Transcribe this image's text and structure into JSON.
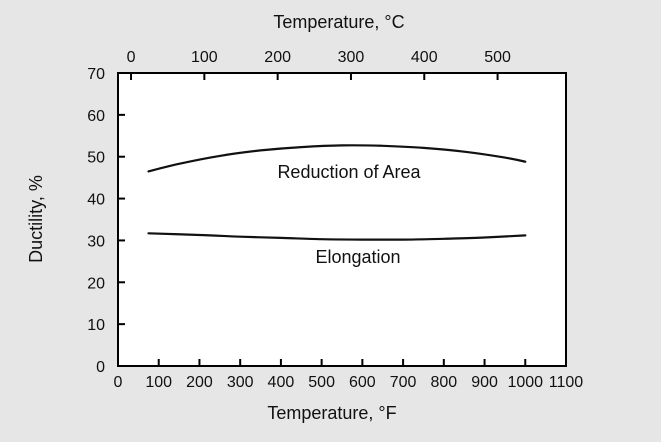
{
  "chart_data": {
    "type": "line",
    "xlabel": "Temperature, °F",
    "ylabel": "Ductility, %",
    "x2label": "Temperature, °C",
    "xlim": [
      0,
      1100
    ],
    "ylim": [
      0,
      70
    ],
    "xticks": [
      0,
      100,
      200,
      300,
      400,
      500,
      600,
      700,
      800,
      900,
      1000,
      1100
    ],
    "yticks": [
      0,
      10,
      20,
      30,
      40,
      50,
      60,
      70
    ],
    "x2ticks": [
      0,
      100,
      200,
      300,
      400,
      500
    ],
    "grid": false,
    "series": [
      {
        "name": "Reduction of Area",
        "x": [
          75,
          150,
          250,
          350,
          450,
          550,
          650,
          750,
          850,
          950,
          1000
        ],
        "y": [
          46.5,
          48.3,
          50.2,
          51.5,
          52.3,
          52.7,
          52.6,
          52.1,
          51.2,
          49.8,
          48.8
        ]
      },
      {
        "name": "Elongation",
        "x": [
          75,
          200,
          300,
          400,
          500,
          600,
          700,
          800,
          900,
          1000
        ],
        "y": [
          31.7,
          31.3,
          30.9,
          30.6,
          30.3,
          30.2,
          30.2,
          30.4,
          30.7,
          31.2
        ]
      }
    ]
  }
}
